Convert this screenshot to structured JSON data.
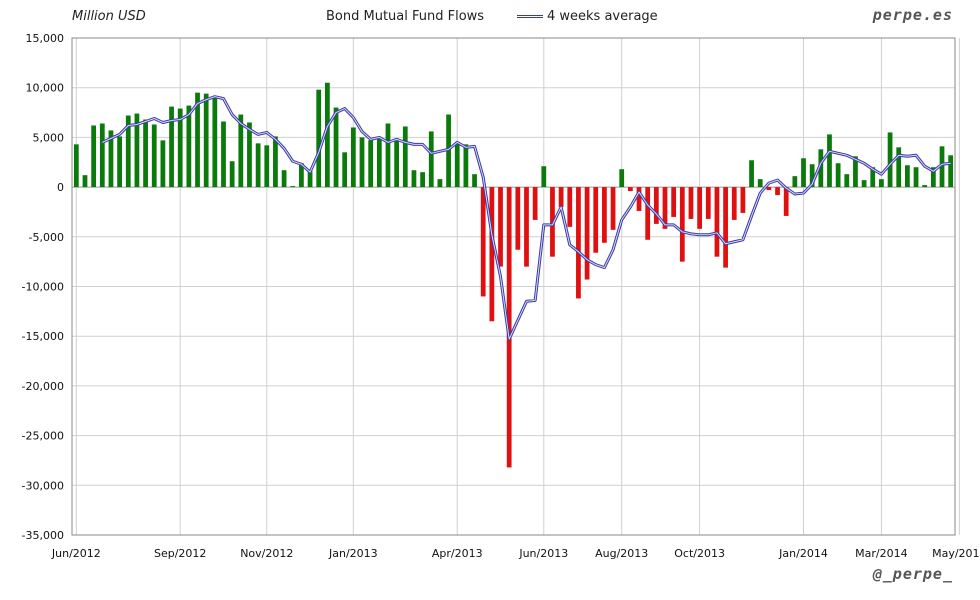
{
  "header": {
    "unit_label": "Million USD",
    "title": "Bond Mutual Fund Flows",
    "legend_label": "4 weeks average",
    "brand_top": "perpe.es",
    "brand_bottom": "@_perpe_"
  },
  "colors": {
    "positive": "#0a7a0a",
    "negative": "#e01010",
    "average_line": "#3b3ba8",
    "grid": "#d0d0d0"
  },
  "chart_data": {
    "type": "bar",
    "title": "Bond Mutual Fund Flows",
    "ylabel": "Million USD",
    "ylim": [
      -35000,
      15000
    ],
    "yticks": [
      15000,
      10000,
      5000,
      0,
      -5000,
      -10000,
      -15000,
      -20000,
      -25000,
      -30000,
      -35000
    ],
    "ytick_labels": [
      "15,000",
      "10,000",
      "5,000",
      "0",
      "-5,000",
      "-10,000",
      "-15,000",
      "-20,000",
      "-25,000",
      "-30,000",
      "-35,000"
    ],
    "x_tick_labels": [
      "Jun/2012",
      "Sep/2012",
      "Nov/2012",
      "Jan/2013",
      "Apr/2013",
      "Jun/2013",
      "Aug/2013",
      "Oct/2013",
      "Jan/2014",
      "Mar/2014",
      "May/2014"
    ],
    "x_tick_weeks": [
      0,
      12,
      22,
      32,
      44,
      54,
      63,
      72,
      84,
      93,
      102
    ],
    "grid": true,
    "weekly_flows": [
      4300,
      1200,
      6200,
      6400,
      5700,
      5100,
      7200,
      7400,
      6800,
      6300,
      4700,
      8100,
      7900,
      8200,
      9500,
      9400,
      9000,
      6600,
      2600,
      7300,
      6500,
      4400,
      4200,
      5100,
      1700,
      100,
      2400,
      1600,
      9800,
      10500,
      8000,
      3500,
      6000,
      5000,
      4700,
      5000,
      6400,
      4900,
      6100,
      1700,
      1500,
      5600,
      800,
      7300,
      4500,
      4300,
      1300,
      -11000,
      -13500,
      -8000,
      -28200,
      -6300,
      -8000,
      -3300,
      2100,
      -7000,
      -2000,
      -4000,
      -11200,
      -9300,
      -6600,
      -5600,
      -4300,
      1800,
      -400,
      -2400,
      -5300,
      -3700,
      -4200,
      -3000,
      -7500,
      -3200,
      -4200,
      -3200,
      -7000,
      -8100,
      -3300,
      -2600,
      2700,
      800,
      -300,
      -800,
      -2900,
      1100,
      2900,
      2300,
      3800,
      5300,
      2400,
      1300,
      3100,
      700,
      2000,
      800,
      5500,
      4000,
      2200,
      2000,
      200,
      2000,
      4100,
      3200
    ],
    "series": [
      {
        "name": "4 weeks average",
        "type": "line",
        "values": [
          null,
          null,
          null,
          4500,
          4900,
          5300,
          6200,
          6300,
          6600,
          6900,
          6500,
          6700,
          6800,
          7300,
          8400,
          8800,
          9100,
          8900,
          7300,
          6400,
          5800,
          5300,
          5500,
          4800,
          3900,
          2600,
          2300,
          1500,
          3500,
          6100,
          7500,
          7900,
          7000,
          5600,
          4800,
          5000,
          4500,
          4800,
          4500,
          4300,
          4300,
          3400,
          3600,
          3800,
          4500,
          4000,
          4100,
          1000,
          -4800,
          -9000,
          -15300,
          -13400,
          -11500,
          -11400,
          -3800,
          -3800,
          -2000,
          -5800,
          -6500,
          -7300,
          -7800,
          -8100,
          -6300,
          -3300,
          -2000,
          -500,
          -1800,
          -2700,
          -3800,
          -3800,
          -4500,
          -4700,
          -4800,
          -4800,
          -4600,
          -5700,
          -5500,
          -5300,
          -2900,
          -600,
          400,
          700,
          -100,
          -700,
          -600,
          300,
          2400,
          3600,
          3400,
          3200,
          2800,
          2400,
          1800,
          1300,
          2300,
          3200,
          3100,
          3200,
          2100,
          1600,
          2300,
          2400
        ]
      }
    ]
  }
}
